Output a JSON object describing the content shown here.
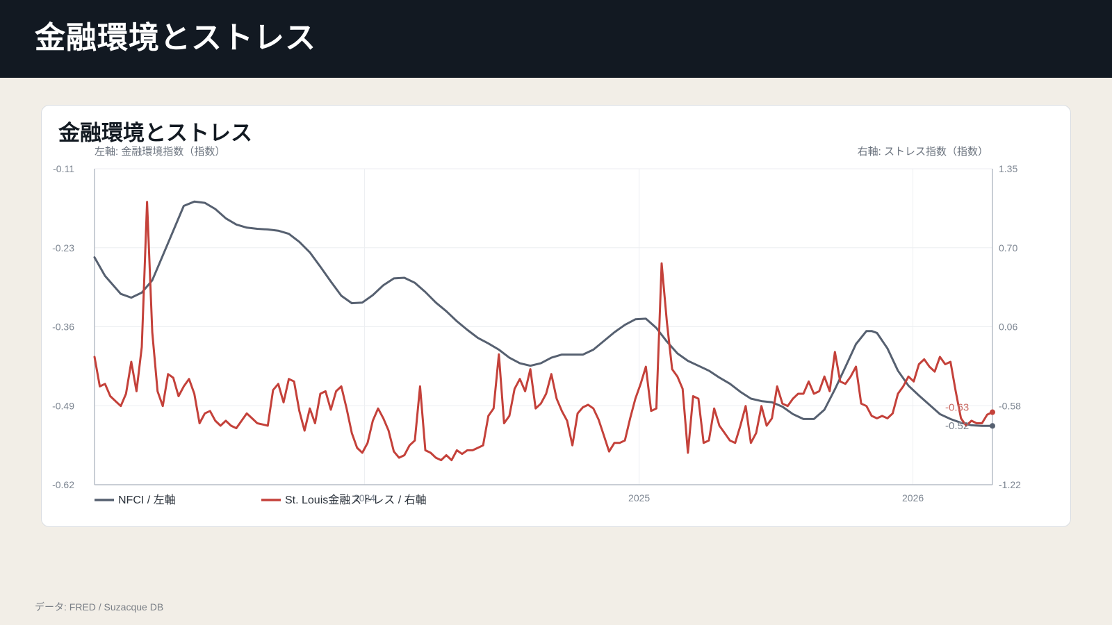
{
  "header": {
    "title": "金融環境とストレス"
  },
  "card": {
    "title": "金融環境とストレス"
  },
  "footer": {
    "source": "データ: FRED / Suzacque DB"
  },
  "colors": {
    "nfci": "#566070",
    "stress": "#c4413a",
    "header_bg": "#121922",
    "page_bg": "#f2eee7"
  },
  "chart_data": {
    "type": "line",
    "left_axis_label": "左軸: 金融環境指数（指数）",
    "right_axis_label": "右軸: ストレス指数（指数）",
    "left_ticks": [
      "-0.11",
      "-0.23",
      "-0.36",
      "-0.49",
      "-0.62"
    ],
    "right_ticks": [
      "1.35",
      "0.70",
      "0.06",
      "-0.58",
      "-1.22"
    ],
    "x_ticks": [
      {
        "label": "2024",
        "date": "2024-01-01"
      },
      {
        "label": "2025",
        "date": "2025-01-01"
      },
      {
        "label": "2026",
        "date": "2026-01-01"
      }
    ],
    "left_range": [
      -0.62,
      -0.11
    ],
    "right_range": [
      -1.22,
      1.35
    ],
    "x_range": [
      "2023-01-06",
      "2026-04-17"
    ],
    "grid": true,
    "legend_position": "bottom-left",
    "series": [
      {
        "name": "NFCI / 左軸",
        "axis": "left",
        "end_label": "-0.52",
        "points": [
          [
            "2023-01-06",
            -0.253
          ],
          [
            "2023-01-20",
            -0.283
          ],
          [
            "2023-02-10",
            -0.312
          ],
          [
            "2023-02-24",
            -0.318
          ],
          [
            "2023-03-10",
            -0.31
          ],
          [
            "2023-03-24",
            -0.29
          ],
          [
            "2023-04-14",
            -0.23
          ],
          [
            "2023-05-05",
            -0.17
          ],
          [
            "2023-05-19",
            -0.163
          ],
          [
            "2023-06-02",
            -0.165
          ],
          [
            "2023-06-16",
            -0.175
          ],
          [
            "2023-06-30",
            -0.19
          ],
          [
            "2023-07-14",
            -0.2
          ],
          [
            "2023-07-28",
            -0.205
          ],
          [
            "2023-08-11",
            -0.207
          ],
          [
            "2023-08-25",
            -0.208
          ],
          [
            "2023-09-08",
            -0.21
          ],
          [
            "2023-09-22",
            -0.215
          ],
          [
            "2023-10-06",
            -0.228
          ],
          [
            "2023-10-20",
            -0.245
          ],
          [
            "2023-11-03",
            -0.268
          ],
          [
            "2023-11-17",
            -0.292
          ],
          [
            "2023-12-01",
            -0.315
          ],
          [
            "2023-12-15",
            -0.327
          ],
          [
            "2023-12-29",
            -0.326
          ],
          [
            "2024-01-12",
            -0.314
          ],
          [
            "2024-01-26",
            -0.298
          ],
          [
            "2024-02-09",
            -0.287
          ],
          [
            "2024-02-23",
            -0.286
          ],
          [
            "2024-03-08",
            -0.294
          ],
          [
            "2024-03-22",
            -0.309
          ],
          [
            "2024-04-05",
            -0.326
          ],
          [
            "2024-04-19",
            -0.34
          ],
          [
            "2024-05-03",
            -0.356
          ],
          [
            "2024-05-17",
            -0.37
          ],
          [
            "2024-05-31",
            -0.383
          ],
          [
            "2024-06-14",
            -0.392
          ],
          [
            "2024-06-28",
            -0.402
          ],
          [
            "2024-07-12",
            -0.415
          ],
          [
            "2024-07-26",
            -0.424
          ],
          [
            "2024-08-09",
            -0.428
          ],
          [
            "2024-08-23",
            -0.424
          ],
          [
            "2024-09-06",
            -0.415
          ],
          [
            "2024-09-20",
            -0.41
          ],
          [
            "2024-10-04",
            -0.41
          ],
          [
            "2024-10-18",
            -0.41
          ],
          [
            "2024-11-01",
            -0.402
          ],
          [
            "2024-11-15",
            -0.388
          ],
          [
            "2024-11-29",
            -0.374
          ],
          [
            "2024-12-13",
            -0.362
          ],
          [
            "2024-12-27",
            -0.353
          ],
          [
            "2025-01-10",
            -0.352
          ],
          [
            "2025-01-24",
            -0.367
          ],
          [
            "2025-02-07",
            -0.389
          ],
          [
            "2025-02-21",
            -0.408
          ],
          [
            "2025-03-07",
            -0.42
          ],
          [
            "2025-03-21",
            -0.428
          ],
          [
            "2025-04-04",
            -0.436
          ],
          [
            "2025-04-18",
            -0.447
          ],
          [
            "2025-05-02",
            -0.457
          ],
          [
            "2025-05-16",
            -0.47
          ],
          [
            "2025-05-30",
            -0.481
          ],
          [
            "2025-06-13",
            -0.485
          ],
          [
            "2025-06-27",
            -0.487
          ],
          [
            "2025-07-11",
            -0.494
          ],
          [
            "2025-07-25",
            -0.506
          ],
          [
            "2025-08-08",
            -0.514
          ],
          [
            "2025-08-22",
            -0.514
          ],
          [
            "2025-09-05",
            -0.499
          ],
          [
            "2025-09-19",
            -0.466
          ],
          [
            "2025-10-03",
            -0.43
          ],
          [
            "2025-10-17",
            -0.393
          ],
          [
            "2025-10-31",
            -0.372
          ],
          [
            "2025-11-07",
            -0.372
          ],
          [
            "2025-11-14",
            -0.375
          ],
          [
            "2025-11-28",
            -0.4
          ],
          [
            "2025-12-12",
            -0.436
          ],
          [
            "2025-12-26",
            -0.46
          ],
          [
            "2026-01-09",
            -0.476
          ],
          [
            "2026-01-23",
            -0.491
          ],
          [
            "2026-02-06",
            -0.506
          ],
          [
            "2026-02-20",
            -0.514
          ],
          [
            "2026-03-06",
            -0.52
          ],
          [
            "2026-03-20",
            -0.524
          ],
          [
            "2026-04-03",
            -0.525
          ],
          [
            "2026-04-17",
            -0.525
          ]
        ]
      },
      {
        "name": "St. Louis金融ストレス / 右軸",
        "axis": "right",
        "end_label": "-0.63",
        "points": [
          [
            "2023-01-06",
            -0.18
          ],
          [
            "2023-01-13",
            -0.42
          ],
          [
            "2023-01-20",
            -0.4
          ],
          [
            "2023-01-27",
            -0.5
          ],
          [
            "2023-02-03",
            -0.54
          ],
          [
            "2023-02-10",
            -0.58
          ],
          [
            "2023-02-17",
            -0.48
          ],
          [
            "2023-02-24",
            -0.22
          ],
          [
            "2023-03-03",
            -0.46
          ],
          [
            "2023-03-10",
            -0.1
          ],
          [
            "2023-03-17",
            1.08
          ],
          [
            "2023-03-24",
            0.02
          ],
          [
            "2023-03-31",
            -0.46
          ],
          [
            "2023-04-07",
            -0.58
          ],
          [
            "2023-04-14",
            -0.32
          ],
          [
            "2023-04-21",
            -0.35
          ],
          [
            "2023-04-28",
            -0.5
          ],
          [
            "2023-05-05",
            -0.42
          ],
          [
            "2023-05-12",
            -0.36
          ],
          [
            "2023-05-19",
            -0.48
          ],
          [
            "2023-05-26",
            -0.72
          ],
          [
            "2023-06-02",
            -0.64
          ],
          [
            "2023-06-09",
            -0.62
          ],
          [
            "2023-06-16",
            -0.7
          ],
          [
            "2023-06-23",
            -0.74
          ],
          [
            "2023-06-30",
            -0.7
          ],
          [
            "2023-07-07",
            -0.74
          ],
          [
            "2023-07-14",
            -0.76
          ],
          [
            "2023-07-21",
            -0.7
          ],
          [
            "2023-07-28",
            -0.64
          ],
          [
            "2023-08-04",
            -0.68
          ],
          [
            "2023-08-11",
            -0.72
          ],
          [
            "2023-08-18",
            -0.73
          ],
          [
            "2023-08-25",
            -0.74
          ],
          [
            "2023-09-01",
            -0.45
          ],
          [
            "2023-09-08",
            -0.4
          ],
          [
            "2023-09-15",
            -0.55
          ],
          [
            "2023-09-22",
            -0.36
          ],
          [
            "2023-09-29",
            -0.38
          ],
          [
            "2023-10-06",
            -0.62
          ],
          [
            "2023-10-13",
            -0.78
          ],
          [
            "2023-10-20",
            -0.6
          ],
          [
            "2023-10-27",
            -0.72
          ],
          [
            "2023-11-03",
            -0.48
          ],
          [
            "2023-11-10",
            -0.46
          ],
          [
            "2023-11-17",
            -0.61
          ],
          [
            "2023-11-24",
            -0.46
          ],
          [
            "2023-12-01",
            -0.42
          ],
          [
            "2023-12-08",
            -0.6
          ],
          [
            "2023-12-15",
            -0.8
          ],
          [
            "2023-12-22",
            -0.92
          ],
          [
            "2023-12-29",
            -0.96
          ],
          [
            "2024-01-05",
            -0.88
          ],
          [
            "2024-01-12",
            -0.7
          ],
          [
            "2024-01-19",
            -0.6
          ],
          [
            "2024-01-26",
            -0.68
          ],
          [
            "2024-02-02",
            -0.78
          ],
          [
            "2024-02-09",
            -0.95
          ],
          [
            "2024-02-16",
            -1.0
          ],
          [
            "2024-02-23",
            -0.98
          ],
          [
            "2024-03-01",
            -0.9
          ],
          [
            "2024-03-08",
            -0.86
          ],
          [
            "2024-03-15",
            -0.42
          ],
          [
            "2024-03-22",
            -0.94
          ],
          [
            "2024-03-29",
            -0.96
          ],
          [
            "2024-04-05",
            -1.0
          ],
          [
            "2024-04-12",
            -1.02
          ],
          [
            "2024-04-19",
            -0.98
          ],
          [
            "2024-04-26",
            -1.02
          ],
          [
            "2024-05-03",
            -0.94
          ],
          [
            "2024-05-10",
            -0.97
          ],
          [
            "2024-05-17",
            -0.94
          ],
          [
            "2024-05-24",
            -0.94
          ],
          [
            "2024-05-31",
            -0.92
          ],
          [
            "2024-06-07",
            -0.9
          ],
          [
            "2024-06-14",
            -0.66
          ],
          [
            "2024-06-21",
            -0.6
          ],
          [
            "2024-06-28",
            -0.16
          ],
          [
            "2024-07-05",
            -0.72
          ],
          [
            "2024-07-12",
            -0.66
          ],
          [
            "2024-07-19",
            -0.44
          ],
          [
            "2024-07-26",
            -0.36
          ],
          [
            "2024-08-02",
            -0.46
          ],
          [
            "2024-08-09",
            -0.28
          ],
          [
            "2024-08-16",
            -0.6
          ],
          [
            "2024-08-23",
            -0.56
          ],
          [
            "2024-08-30",
            -0.48
          ],
          [
            "2024-09-06",
            -0.32
          ],
          [
            "2024-09-13",
            -0.52
          ],
          [
            "2024-09-20",
            -0.62
          ],
          [
            "2024-09-27",
            -0.7
          ],
          [
            "2024-10-04",
            -0.9
          ],
          [
            "2024-10-11",
            -0.64
          ],
          [
            "2024-10-18",
            -0.59
          ],
          [
            "2024-10-25",
            -0.57
          ],
          [
            "2024-11-01",
            -0.6
          ],
          [
            "2024-11-08",
            -0.69
          ],
          [
            "2024-11-15",
            -0.82
          ],
          [
            "2024-11-22",
            -0.95
          ],
          [
            "2024-11-29",
            -0.88
          ],
          [
            "2024-12-06",
            -0.88
          ],
          [
            "2024-12-13",
            -0.86
          ],
          [
            "2024-12-20",
            -0.68
          ],
          [
            "2024-12-27",
            -0.52
          ],
          [
            "2025-01-03",
            -0.4
          ],
          [
            "2025-01-10",
            -0.26
          ],
          [
            "2025-01-17",
            -0.62
          ],
          [
            "2025-01-24",
            -0.6
          ],
          [
            "2025-01-31",
            0.58
          ],
          [
            "2025-02-07",
            0.1
          ],
          [
            "2025-02-14",
            -0.28
          ],
          [
            "2025-02-21",
            -0.34
          ],
          [
            "2025-02-28",
            -0.44
          ],
          [
            "2025-03-07",
            -0.96
          ],
          [
            "2025-03-14",
            -0.5
          ],
          [
            "2025-03-21",
            -0.52
          ],
          [
            "2025-03-28",
            -0.88
          ],
          [
            "2025-04-04",
            -0.86
          ],
          [
            "2025-04-11",
            -0.6
          ],
          [
            "2025-04-18",
            -0.74
          ],
          [
            "2025-04-25",
            -0.8
          ],
          [
            "2025-05-02",
            -0.86
          ],
          [
            "2025-05-09",
            -0.88
          ],
          [
            "2025-05-16",
            -0.74
          ],
          [
            "2025-05-23",
            -0.58
          ],
          [
            "2025-05-30",
            -0.88
          ],
          [
            "2025-06-06",
            -0.8
          ],
          [
            "2025-06-13",
            -0.58
          ],
          [
            "2025-06-20",
            -0.74
          ],
          [
            "2025-06-27",
            -0.68
          ],
          [
            "2025-07-04",
            -0.42
          ],
          [
            "2025-07-11",
            -0.56
          ],
          [
            "2025-07-18",
            -0.58
          ],
          [
            "2025-07-25",
            -0.52
          ],
          [
            "2025-08-01",
            -0.48
          ],
          [
            "2025-08-08",
            -0.48
          ],
          [
            "2025-08-15",
            -0.38
          ],
          [
            "2025-08-22",
            -0.48
          ],
          [
            "2025-08-29",
            -0.46
          ],
          [
            "2025-09-05",
            -0.34
          ],
          [
            "2025-09-12",
            -0.46
          ],
          [
            "2025-09-19",
            -0.14
          ],
          [
            "2025-09-26",
            -0.38
          ],
          [
            "2025-10-03",
            -0.4
          ],
          [
            "2025-10-10",
            -0.34
          ],
          [
            "2025-10-17",
            -0.26
          ],
          [
            "2025-10-24",
            -0.56
          ],
          [
            "2025-10-31",
            -0.58
          ],
          [
            "2025-11-07",
            -0.66
          ],
          [
            "2025-11-14",
            -0.68
          ],
          [
            "2025-11-21",
            -0.66
          ],
          [
            "2025-11-28",
            -0.68
          ],
          [
            "2025-12-05",
            -0.64
          ],
          [
            "2025-12-12",
            -0.48
          ],
          [
            "2025-12-19",
            -0.42
          ],
          [
            "2025-12-26",
            -0.34
          ],
          [
            "2026-01-02",
            -0.38
          ],
          [
            "2026-01-09",
            -0.24
          ],
          [
            "2026-01-16",
            -0.2
          ],
          [
            "2026-01-23",
            -0.26
          ],
          [
            "2026-01-30",
            -0.3
          ],
          [
            "2026-02-06",
            -0.18
          ],
          [
            "2026-02-13",
            -0.24
          ],
          [
            "2026-02-20",
            -0.22
          ],
          [
            "2026-02-27",
            -0.46
          ],
          [
            "2026-03-06",
            -0.68
          ],
          [
            "2026-03-13",
            -0.74
          ],
          [
            "2026-03-20",
            -0.7
          ],
          [
            "2026-03-27",
            -0.72
          ],
          [
            "2026-04-03",
            -0.72
          ],
          [
            "2026-04-10",
            -0.65
          ],
          [
            "2026-04-17",
            -0.63
          ]
        ]
      }
    ]
  }
}
